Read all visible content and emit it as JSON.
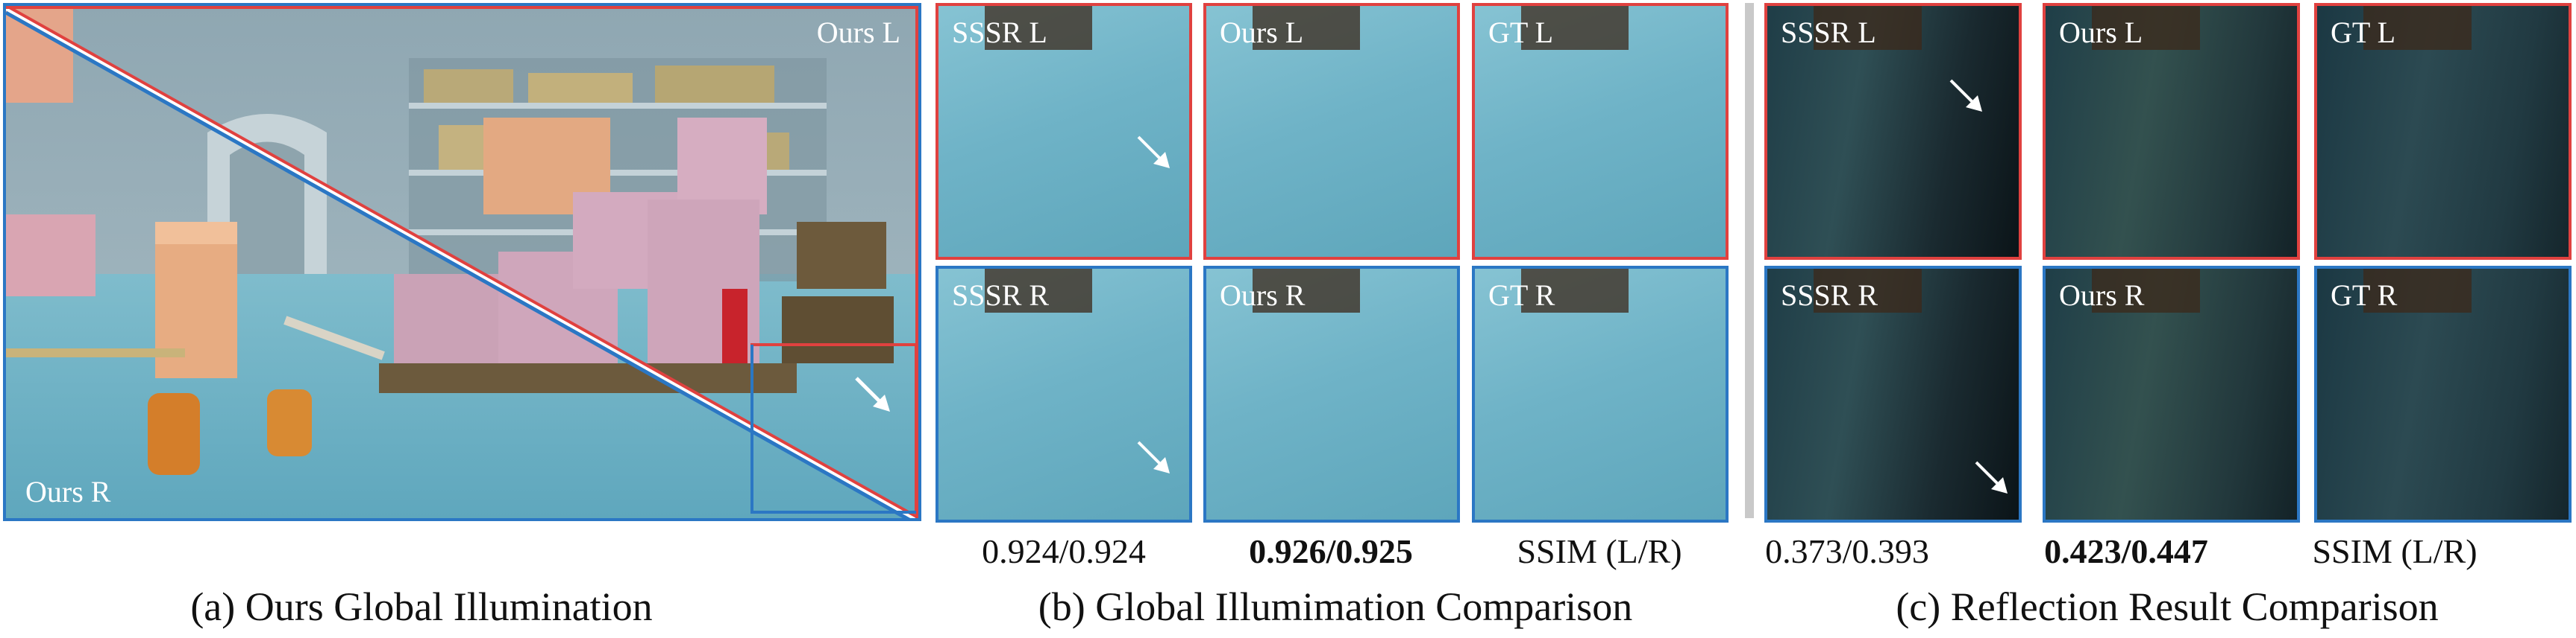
{
  "scene": {
    "label_l": "Ours L",
    "label_r": "Ours R"
  },
  "gi_comparison": {
    "labels_l": [
      "SSSR L",
      "Ours L",
      "GT L"
    ],
    "labels_r": [
      "SSSR R",
      "Ours R",
      "GT R"
    ],
    "metrics": [
      "0.924/0.924",
      "0.926/0.925",
      "SSIM (L/R)"
    ]
  },
  "reflection_comparison": {
    "labels_l": [
      "SSSR L",
      "Ours L",
      "GT L"
    ],
    "labels_r": [
      "SSSR R",
      "Ours R",
      "GT R"
    ],
    "metrics": [
      "0.373/0.393",
      "0.423/0.447",
      "SSIM (L/R)"
    ]
  },
  "captions": {
    "a": "(a) Ours Global Illumination",
    "b": "(b) Global Illumimation Comparison",
    "c": "(c) Reflection Result Comparison"
  },
  "colors": {
    "left_border": "#e0413f",
    "right_border": "#2b77c4"
  }
}
